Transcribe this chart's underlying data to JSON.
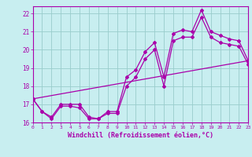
{
  "xlabel": "Windchill (Refroidissement éolien,°C)",
  "bg_color": "#c8eef0",
  "line_color": "#aa00aa",
  "grid_color": "#99cccc",
  "spine_color": "#aa00aa",
  "xlim": [
    0,
    23
  ],
  "ylim": [
    16,
    22.4
  ],
  "xticks": [
    0,
    1,
    2,
    3,
    4,
    5,
    6,
    7,
    8,
    9,
    10,
    11,
    12,
    13,
    14,
    15,
    16,
    17,
    18,
    19,
    20,
    21,
    22,
    23
  ],
  "yticks": [
    16,
    17,
    18,
    19,
    20,
    21,
    22
  ],
  "line1_x": [
    0,
    1,
    2,
    3,
    4,
    5,
    6,
    7,
    8,
    9,
    10,
    11,
    12,
    13,
    14,
    15,
    16,
    17,
    18,
    19,
    20,
    21,
    22,
    23
  ],
  "line1_y": [
    17.3,
    16.6,
    16.3,
    17.0,
    17.0,
    17.0,
    16.3,
    16.2,
    16.6,
    16.6,
    18.5,
    18.9,
    19.9,
    20.4,
    18.5,
    20.9,
    21.1,
    21.0,
    22.2,
    21.0,
    20.8,
    20.6,
    20.5,
    19.4
  ],
  "line2_x": [
    0,
    1,
    2,
    3,
    4,
    5,
    6,
    7,
    8,
    9,
    10,
    11,
    12,
    13,
    14,
    15,
    16,
    17,
    18,
    19,
    20,
    21,
    22,
    23
  ],
  "line2_y": [
    17.3,
    16.6,
    16.2,
    16.9,
    16.9,
    16.8,
    16.2,
    16.2,
    16.5,
    16.5,
    18.0,
    18.5,
    19.5,
    20.0,
    18.0,
    20.5,
    20.7,
    20.7,
    21.8,
    20.7,
    20.4,
    20.3,
    20.2,
    19.2
  ],
  "line3_x": [
    0,
    23
  ],
  "line3_y": [
    17.3,
    19.4
  ],
  "tick_fontsize": 5.5,
  "xlabel_fontsize": 6.0
}
